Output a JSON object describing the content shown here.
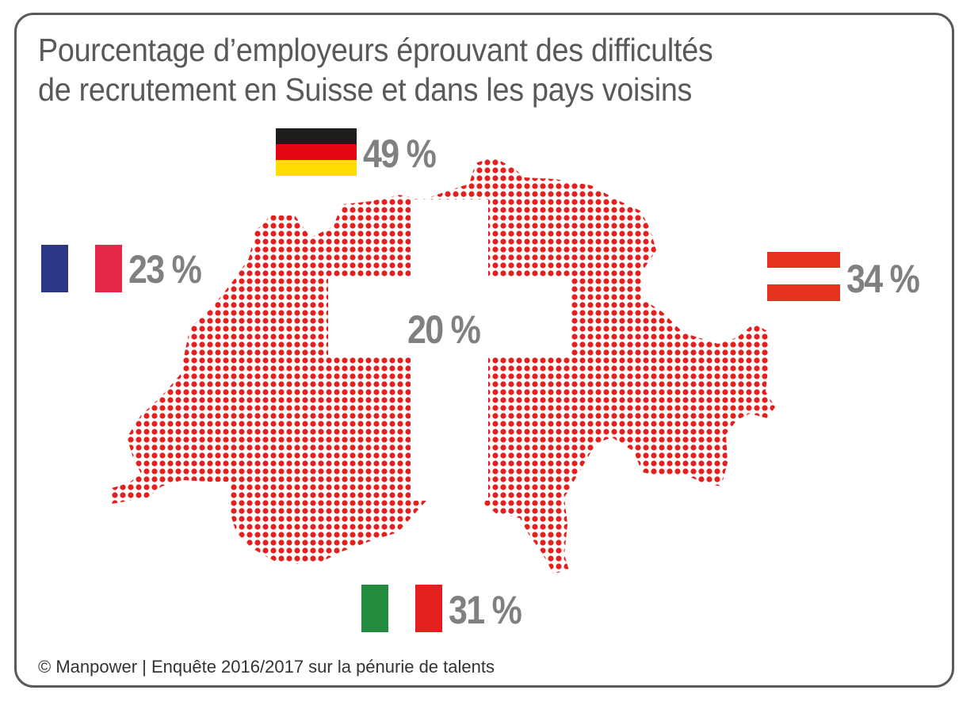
{
  "title": {
    "line1": "Pourcentage d’employeurs éprouvant des difficultés",
    "line2": "de recrutement en Suisse et dans les pays voisins"
  },
  "countries": {
    "switzerland": {
      "value": "20 %",
      "percent": 20
    },
    "germany": {
      "value": "49 %",
      "percent": 49,
      "flag_colors": [
        "#1d1d1b",
        "#e30613",
        "#ffdd00"
      ]
    },
    "france": {
      "value": "23 %",
      "percent": 23,
      "flag_colors": [
        "#2b3786",
        "#ffffff",
        "#e42647"
      ]
    },
    "austria": {
      "value": "34 %",
      "percent": 34,
      "flag_colors": [
        "#e4321e",
        "#ffffff",
        "#e4321e"
      ]
    },
    "italy": {
      "value": "31 %",
      "percent": 31,
      "flag_colors": [
        "#238b3d",
        "#ffffff",
        "#e3201d"
      ]
    }
  },
  "footer": "© Manpower | Enquête 2016/2017 sur la pénurie de talents",
  "colors": {
    "map_dots": "#e3201d",
    "text_gray": "#808080",
    "border": "#58595b"
  }
}
